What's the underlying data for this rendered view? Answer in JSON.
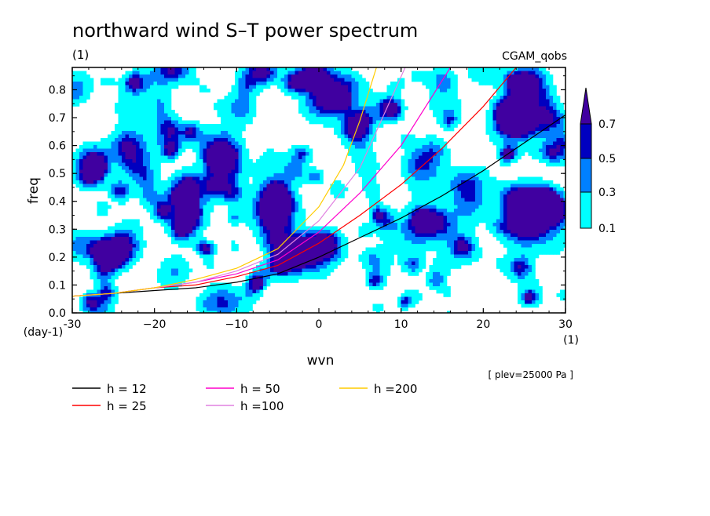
{
  "title": "northward wind S–T power spectrum",
  "title_unit": "(1)",
  "dataset": "CGAM_qobs",
  "footnote": "[ plev=25000 Pa ]",
  "colors": {
    "frame": "#000000",
    "fill_01": "#00ffff",
    "fill_03": "#0080ff",
    "fill_05": "#0000c0",
    "fill_07": "#4000a0"
  },
  "chart_data": {
    "type": "contour",
    "xlabel": "wvn",
    "xunit": "(1)",
    "ylabel": "freq",
    "yunit": "(day-1)",
    "xlim": [
      -30,
      30
    ],
    "ylim": [
      0,
      0.88
    ],
    "xticks": [
      -30,
      -20,
      -10,
      0,
      10,
      20,
      30
    ],
    "xtick_labels": [
      "-30",
      "−20",
      "−10",
      "0",
      "10",
      "20",
      "30"
    ],
    "yticks": [
      0,
      0.1,
      0.2,
      0.3,
      0.4,
      0.5,
      0.6,
      0.7,
      0.8
    ],
    "ytick_labels": [
      "0.0",
      "0.1",
      "0.2",
      "0.3",
      "0.4",
      "0.5",
      "0.6",
      "0.7",
      "0.8"
    ],
    "colorbar": {
      "levels": [
        0.1,
        0.3,
        0.5,
        0.7
      ],
      "labels": [
        "0.1",
        "0.3",
        "0.5",
        "0.7"
      ],
      "colors": [
        "#00ffff",
        "#0080ff",
        "#0000c0",
        "#4000a0"
      ]
    },
    "series": [
      {
        "name": "h = 12",
        "label": "h = 12",
        "color": "#000000",
        "x": [
          -30,
          -25,
          -20,
          -15,
          -10,
          -5,
          0,
          5,
          10,
          15,
          20,
          25,
          30
        ],
        "y": [
          0.06,
          0.07,
          0.08,
          0.09,
          0.11,
          0.14,
          0.2,
          0.27,
          0.34,
          0.42,
          0.51,
          0.61,
          0.71
        ]
      },
      {
        "name": "h = 25",
        "label": "h = 25",
        "color": "#ff0000",
        "x": [
          -30,
          -25,
          -20,
          -15,
          -10,
          -5,
          0,
          5,
          10,
          15,
          20,
          24
        ],
        "y": [
          0.06,
          0.07,
          0.09,
          0.1,
          0.13,
          0.17,
          0.25,
          0.35,
          0.46,
          0.59,
          0.74,
          0.88
        ]
      },
      {
        "name": "h = 50",
        "label": "h = 50",
        "color": "#ff00cc",
        "x": [
          -30,
          -25,
          -20,
          -15,
          -10,
          -5,
          0,
          5,
          10,
          16
        ],
        "y": [
          0.06,
          0.07,
          0.09,
          0.11,
          0.14,
          0.19,
          0.29,
          0.43,
          0.6,
          0.88
        ]
      },
      {
        "name": "h =100",
        "label": "h =100",
        "color": "#e080e0",
        "x": [
          -30,
          -25,
          -20,
          -15,
          -10,
          -5,
          0,
          5,
          10.5
        ],
        "y": [
          0.06,
          0.07,
          0.09,
          0.11,
          0.15,
          0.21,
          0.33,
          0.52,
          0.88
        ]
      },
      {
        "name": "h =200",
        "label": "h =200",
        "color": "#ffcc00",
        "x": [
          -30,
          -25,
          -20,
          -15,
          -10,
          -5,
          0,
          3,
          5,
          7
        ],
        "y": [
          0.06,
          0.07,
          0.09,
          0.12,
          0.16,
          0.23,
          0.38,
          0.53,
          0.69,
          0.88
        ]
      }
    ]
  }
}
